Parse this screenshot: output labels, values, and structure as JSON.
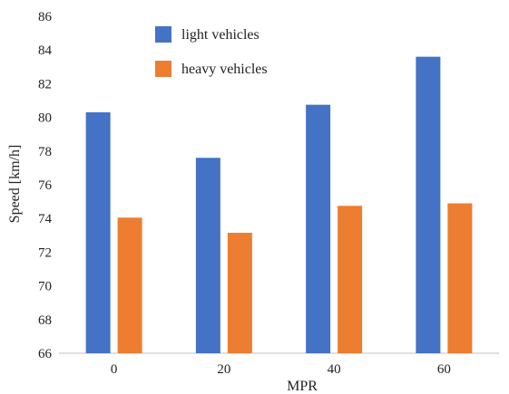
{
  "chart_data": {
    "type": "bar",
    "title": "",
    "xlabel": "MPR",
    "ylabel": "Speed [km/h]",
    "categories": [
      "0",
      "20",
      "40",
      "60"
    ],
    "ylim": [
      66,
      86
    ],
    "yticks": [
      66,
      68,
      70,
      72,
      74,
      76,
      78,
      80,
      82,
      84,
      86
    ],
    "grid": false,
    "legend_position": "top-center",
    "series": [
      {
        "name": "light vehicles",
        "values": [
          80.3,
          77.6,
          80.75,
          83.6
        ],
        "color": "#4472C4"
      },
      {
        "name": "heavy vehicles",
        "values": [
          74.05,
          73.15,
          74.75,
          74.9
        ],
        "color": "#ED7D31"
      }
    ]
  }
}
